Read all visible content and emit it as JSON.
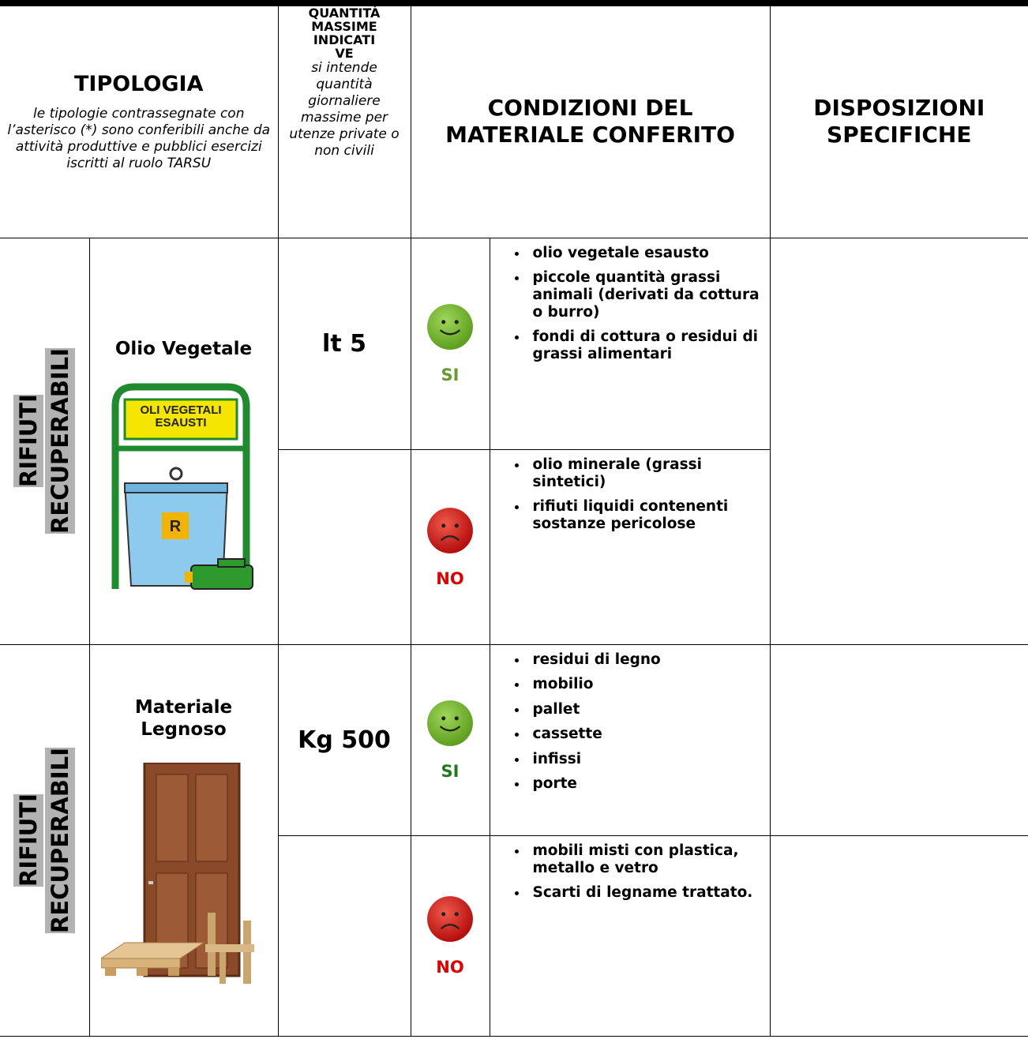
{
  "header": {
    "tipologia": {
      "title": "TIPOLOGIA",
      "note": "le tipologie contrassegnate con l’asterisco (*) sono conferibili anche da attività produttive e pubblici esercizi iscritti al ruolo TARSU"
    },
    "quantita": {
      "title_lines": [
        "QUANTITÀ",
        "MASSIME",
        "INDICATI",
        "VE"
      ],
      "note": "si intende quantità giornaliere massime per utenze private o non civili"
    },
    "condizioni": {
      "title": "CONDIZIONI DEL MATERIALE CONFERITO"
    },
    "disposizioni": {
      "title": "DISPOSIZIONI SPECIFICHE"
    }
  },
  "sections": [
    {
      "category_lines": [
        "RIFIUTI",
        "RECUPERABILI"
      ],
      "name": "Olio Vegetale",
      "image_texts": {
        "sign_lines": [
          "OLI VEGETALI",
          "ESAUSTI"
        ],
        "badge": "R"
      },
      "quantity": "lt 5",
      "allowed": {
        "verdict": "SI",
        "items": [
          "olio vegetale esausto",
          "piccole quantità grassi animali (derivati da cottura o burro)",
          "fondi di cottura o residui di grassi alimentari"
        ]
      },
      "forbidden": {
        "verdict": "NO",
        "items": [
          "olio minerale (grassi sintetici)",
          "rifiuti liquidi contenenti sostanze pericolose"
        ]
      }
    },
    {
      "category_lines": [
        "RIFIUTI",
        "RECUPERABILI"
      ],
      "name": "Materiale Legnoso",
      "quantity": "Kg 500",
      "allowed": {
        "verdict": "SI",
        "items": [
          "residui di legno",
          "mobilio",
          "pallet",
          "cassette",
          "infissi",
          "porte"
        ]
      },
      "forbidden": {
        "verdict": "NO",
        "items": [
          "mobili misti con plastica, metallo e vetro",
          "Scarti di legname trattato."
        ]
      }
    }
  ]
}
